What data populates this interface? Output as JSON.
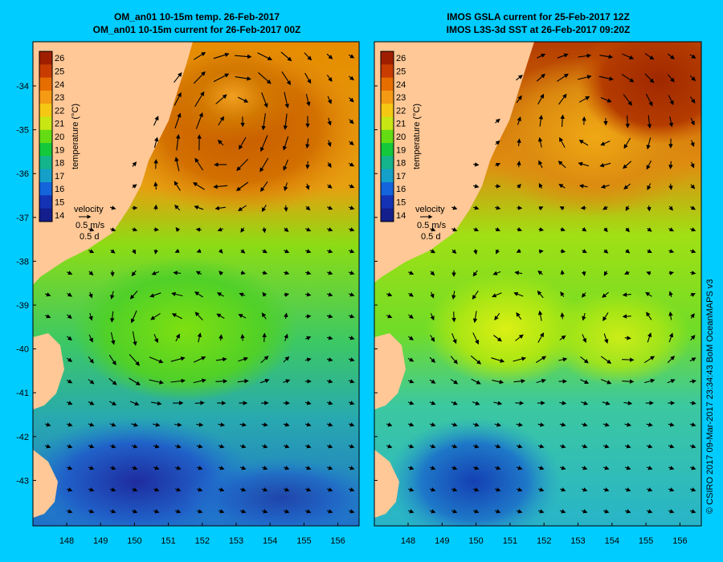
{
  "colors": {
    "background": "#00ccff",
    "land": "#ffc896"
  },
  "panels": [
    {
      "id": "left",
      "title_line1": "OM_an01 10-15m temp. 26-Feb-2017",
      "title_line2": "OM_an01 10-15m current for 26-Feb-2017 00Z"
    },
    {
      "id": "right",
      "title_line1": "IMOS GSLA current for 25-Feb-2017 12Z",
      "title_line2": "IMOS L3S-3d SST at 26-Feb-2017 09:20Z"
    }
  ],
  "colorbar": {
    "label": "temperature (°C)",
    "ticks": [
      "26",
      "25",
      "24",
      "23",
      "22",
      "21",
      "20",
      "19",
      "18",
      "17",
      "16",
      "15",
      "14"
    ],
    "colors": [
      "#a01e00",
      "#c83c00",
      "#e66e00",
      "#f59a14",
      "#f5c814",
      "#c8e614",
      "#64dc14",
      "#14c83c",
      "#14b48c",
      "#14a0c8",
      "#1464dc",
      "#1432b4",
      "#141e8c"
    ]
  },
  "velocity_legend": {
    "title": "velocity",
    "speed": "0.5 m/s",
    "duration": "0.5 d"
  },
  "axes": {
    "lat_ticks": [
      "-34",
      "-35",
      "-36",
      "-37",
      "-38",
      "-39",
      "-40",
      "-41",
      "-42",
      "-43"
    ],
    "lon_ticks": [
      "148",
      "149",
      "150",
      "151",
      "152",
      "153",
      "154",
      "155",
      "156"
    ]
  },
  "credit": "© CSIRO 2017   09-Mar-2017 23:34:43 BoM OceanMAPS v3"
}
